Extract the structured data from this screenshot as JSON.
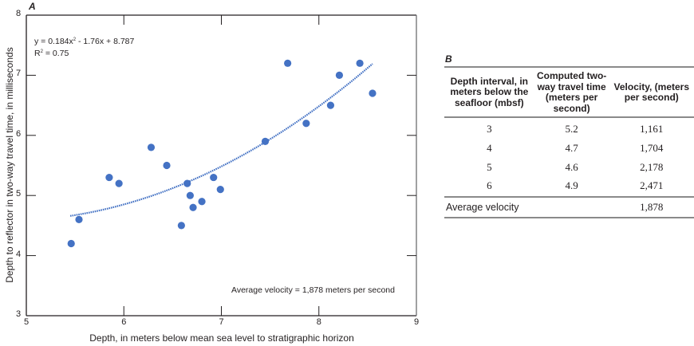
{
  "panel_a": {
    "label": "A",
    "equation": "y = 0.184x",
    "equation_exp": "2",
    "equation_rest": " - 1.76x + 8.787",
    "r2_prefix": "R",
    "r2_exp": "2",
    "r2_rest": " = 0.75",
    "annotation": "Average velocity = 1,878 meters per second",
    "xlabel": "Depth, in meters below mean sea level to stratigraphic horizon",
    "ylabel": "Depth to reflector in two-way travel time, in milliseconds",
    "xticks": [
      "5",
      "6",
      "7",
      "8",
      "9"
    ],
    "yticks": [
      "3",
      "4",
      "5",
      "6",
      "7",
      "8"
    ]
  },
  "panel_b": {
    "label": "B",
    "headers": [
      "Depth interval, in meters below the seafloor (mbsf)",
      "Computed two-way travel time (meters per second)",
      "Velocity, (meters per second)"
    ],
    "rows": [
      [
        "3",
        "5.2",
        "1,161"
      ],
      [
        "4",
        "4.7",
        "1,704"
      ],
      [
        "5",
        "4.6",
        "2,178"
      ],
      [
        "6",
        "4.9",
        "2,471"
      ]
    ],
    "average_label": "Average velocity",
    "average_value": "1,878"
  },
  "colors": {
    "point": "#4472c4",
    "trend": "#4472c4",
    "axis": "#231f20",
    "rule": "#8a8a8a"
  },
  "chart_data": [
    {
      "type": "scatter",
      "title": "A",
      "xlabel": "Depth, in meters below mean sea level to stratigraphic horizon",
      "ylabel": "Depth to reflector in two-way travel time, in milliseconds",
      "xlim": [
        5,
        9
      ],
      "ylim": [
        3,
        8
      ],
      "grid": false,
      "legend": null,
      "series": [
        {
          "name": "observations",
          "x": [
            5.46,
            5.54,
            5.85,
            5.95,
            6.28,
            6.44,
            6.59,
            6.65,
            6.68,
            6.71,
            6.8,
            6.92,
            6.99,
            7.45,
            7.68,
            7.87,
            8.12,
            8.21,
            8.42,
            8.55
          ],
          "y": [
            4.2,
            4.6,
            5.3,
            5.2,
            5.8,
            5.5,
            4.5,
            5.2,
            5.0,
            4.8,
            4.9,
            5.3,
            5.1,
            5.9,
            7.2,
            6.2,
            6.5,
            7.0,
            7.2,
            6.7
          ]
        }
      ],
      "trendline": {
        "type": "polynomial",
        "order": 2,
        "coefficients": [
          0.184,
          -1.76,
          8.787
        ],
        "x_range": [
          5.45,
          8.55
        ],
        "equation": "y = 0.184x^2 - 1.76x + 8.787",
        "r2": 0.75,
        "style": "dotted"
      },
      "annotations": [
        "y = 0.184x2 - 1.76x + 8.787",
        "R2 = 0.75",
        "Average velocity = 1,878 meters per second"
      ]
    },
    {
      "type": "table",
      "title": "B",
      "columns": [
        "Depth interval, in meters below the seafloor (mbsf)",
        "Computed two-way travel time (meters per second)",
        "Velocity, (meters per second)"
      ],
      "rows": [
        [
          3,
          5.2,
          1161
        ],
        [
          4,
          4.7,
          1704
        ],
        [
          5,
          4.6,
          2178
        ],
        [
          6,
          4.9,
          2471
        ]
      ],
      "footer": [
        "Average velocity",
        null,
        1878
      ]
    }
  ]
}
